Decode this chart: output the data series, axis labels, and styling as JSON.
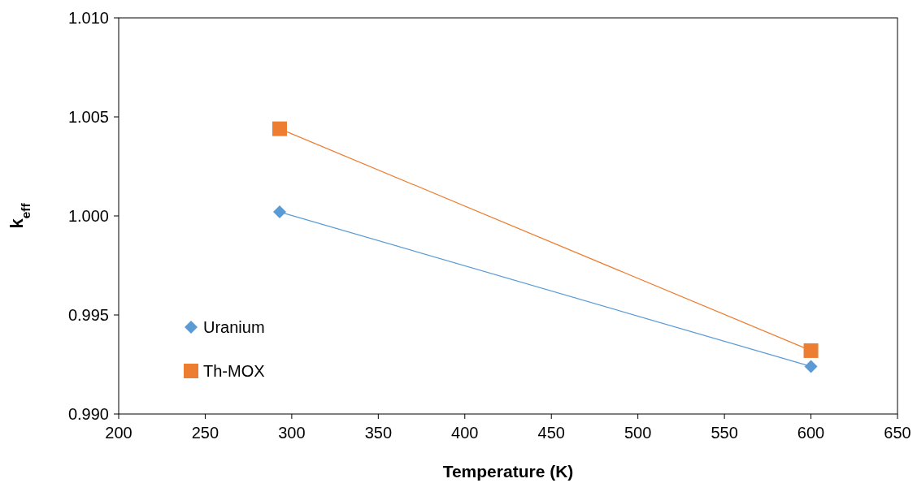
{
  "chart_data": {
    "type": "line",
    "xlabel": "Temperature (K)",
    "ylabel": "k$_{eff}$",
    "x": [
      293,
      600
    ],
    "series": [
      {
        "name": "Uranium",
        "color": "#5b9bd5",
        "marker": "diamond",
        "values": [
          1.0002,
          0.9924
        ]
      },
      {
        "name": "Th-MOX",
        "color": "#ed7d31",
        "marker": "square",
        "values": [
          1.0044,
          0.9932
        ]
      }
    ],
    "xlim": [
      200,
      650
    ],
    "xticks": [
      200,
      250,
      300,
      350,
      400,
      450,
      500,
      550,
      600,
      650
    ],
    "ylim": [
      0.99,
      1.01
    ],
    "yticks": [
      {
        "value": 0.99,
        "label": "0.990"
      },
      {
        "value": 0.995,
        "label": "0.995"
      },
      {
        "value": 1.0,
        "label": "1.000"
      },
      {
        "value": 1.005,
        "label": "1.005"
      },
      {
        "value": 1.01,
        "label": "1.010"
      }
    ],
    "grid": false,
    "legend": "left"
  }
}
